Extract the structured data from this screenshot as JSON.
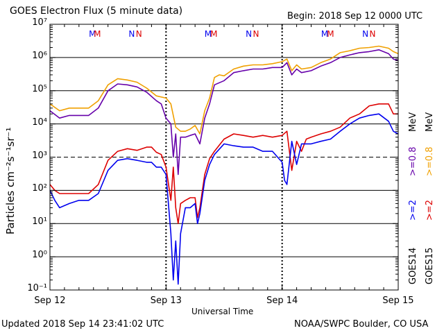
{
  "chart_data": {
    "type": "line",
    "title": "GOES Electron Flux (5 minute data)",
    "begin_label": "Begin: 2018 Sep 12 0000 UTC",
    "xlabel": "Universal Time",
    "ylabel": "Particles cm⁻²s⁻¹sr⁻¹",
    "x_ticks": [
      "Sep 12",
      "Sep 13",
      "Sep 14",
      "Sep 15"
    ],
    "x_range_hours": [
      0,
      72
    ],
    "y_scale": "log",
    "y_range": [
      0.1,
      10000000
    ],
    "y_ticks": [
      "10⁻¹",
      "10⁰",
      "10¹",
      "10²",
      "10³",
      "10⁴",
      "10⁵",
      "10⁶",
      "10⁷"
    ],
    "threshold_value": 1000,
    "footer_left": "Updated 2018 Sep 14 23:41:02 UTC",
    "footer_right": "NOAA/SWPC Boulder, CO USA",
    "satellites": {
      "GOES14": "GOES14",
      "GOES15": "GOES15"
    },
    "legend": {
      "goes14_ge2": ">=2",
      "goes14_ge08": ">=0.8",
      "goes15_ge2": ">=2",
      "goes15_ge08": ">=0.8",
      "unit": "MeV"
    },
    "markers": {
      "M": "M",
      "N": "N"
    },
    "day_markers": [
      {
        "m_blue_h": 8.8,
        "m_red_h": 9.8,
        "n_blue_h": 16.9,
        "n_red_h": 18.4
      },
      {
        "m_blue_h": 32.7,
        "m_red_h": 33.9,
        "n_blue_h": 41.1,
        "n_red_h": 42.6
      },
      {
        "m_blue_h": 56.8,
        "m_red_h": 58.0,
        "n_blue_h": 65.2,
        "n_red_h": 66.7
      }
    ],
    "colors": {
      "goes14_ge2": "#0000ee",
      "goes15_ge2": "#dd0000",
      "goes14_ge08": "#6600aa",
      "goes15_ge08": "#f0a000"
    },
    "series": [
      {
        "name": ">=0.8",
        "key": "goes15_ge08",
        "color": "#f0a000",
        "x": [
          0,
          2,
          4,
          6,
          8,
          10,
          12,
          14,
          16,
          18,
          20,
          22,
          24,
          25,
          26,
          27,
          28,
          29,
          30,
          31,
          32,
          33,
          34,
          35,
          36,
          38,
          40,
          42,
          44,
          46,
          48,
          49,
          50,
          51,
          52,
          54,
          56,
          58,
          60,
          62,
          64,
          66,
          68,
          70,
          71,
          72
        ],
        "y": [
          40000,
          25000,
          30000,
          30000,
          30000,
          50000,
          150000,
          230000,
          210000,
          180000,
          120000,
          70000,
          60000,
          40000,
          8000,
          6000,
          6000,
          7000,
          9000,
          5000,
          25000,
          60000,
          250000,
          300000,
          280000,
          450000,
          550000,
          600000,
          600000,
          650000,
          750000,
          900000,
          400000,
          600000,
          450000,
          500000,
          700000,
          900000,
          1400000,
          1600000,
          1900000,
          2000000,
          2200000,
          1900000,
          1500000,
          1300000
        ]
      },
      {
        "name": ">=0.8",
        "key": "goes14_ge08",
        "color": "#6600aa",
        "x": [
          0,
          2,
          4,
          6,
          8,
          10,
          12,
          14,
          16,
          18,
          20,
          22,
          23,
          24,
          25,
          25.5,
          26,
          26.5,
          27,
          28,
          29,
          30,
          31,
          32,
          33,
          34,
          36,
          38,
          40,
          42,
          44,
          46,
          48,
          49,
          50,
          51,
          52,
          54,
          56,
          58,
          60,
          62,
          64,
          66,
          68,
          70,
          71,
          72
        ],
        "y": [
          25000,
          15000,
          18000,
          18000,
          18000,
          30000,
          100000,
          160000,
          150000,
          130000,
          90000,
          50000,
          40000,
          15000,
          10000,
          1000,
          5000,
          300,
          4000,
          4000,
          4500,
          5000,
          2500,
          15000,
          40000,
          150000,
          200000,
          350000,
          400000,
          450000,
          450000,
          500000,
          500000,
          700000,
          300000,
          450000,
          350000,
          400000,
          550000,
          700000,
          1000000,
          1200000,
          1400000,
          1500000,
          1700000,
          1300000,
          900000,
          800000
        ]
      },
      {
        "name": ">=2",
        "key": "goes15_ge2",
        "color": "#dd0000",
        "x": [
          0,
          1,
          2,
          4,
          6,
          8,
          10,
          12,
          14,
          16,
          18,
          20,
          21,
          22,
          23,
          24,
          25,
          25.5,
          26,
          26.5,
          27,
          28,
          29,
          30,
          30.5,
          31,
          32,
          33,
          34,
          36,
          38,
          40,
          42,
          44,
          46,
          48,
          49,
          50,
          51,
          52,
          53,
          54,
          56,
          58,
          60,
          62,
          64,
          66,
          68,
          70,
          71,
          72
        ],
        "y": [
          150,
          100,
          80,
          80,
          80,
          80,
          150,
          800,
          1500,
          1800,
          1600,
          2000,
          2000,
          1400,
          1200,
          500,
          50,
          500,
          30,
          10,
          40,
          50,
          60,
          60,
          15,
          30,
          300,
          900,
          1500,
          3500,
          5000,
          4500,
          4000,
          4500,
          4000,
          4500,
          6000,
          400,
          3000,
          1500,
          3500,
          4000,
          5000,
          6000,
          8000,
          15000,
          20000,
          35000,
          40000,
          40000,
          20000,
          20000
        ]
      },
      {
        "name": ">=2",
        "key": "goes14_ge2",
        "color": "#0000ee",
        "x": [
          0,
          1,
          2,
          4,
          6,
          8,
          10,
          12,
          14,
          16,
          18,
          20,
          21,
          22,
          23,
          24,
          25,
          25.5,
          26,
          26.5,
          27,
          28,
          29,
          30,
          30.5,
          31,
          32,
          33,
          34,
          36,
          38,
          40,
          42,
          44,
          46,
          48,
          48.5,
          49,
          50,
          51,
          52,
          53,
          54,
          56,
          58,
          60,
          62,
          64,
          66,
          68,
          70,
          71,
          72
        ],
        "y": [
          100,
          50,
          30,
          40,
          50,
          50,
          80,
          400,
          800,
          900,
          800,
          700,
          700,
          500,
          500,
          300,
          5,
          0.2,
          3,
          0.15,
          5,
          30,
          30,
          40,
          10,
          20,
          200,
          600,
          1200,
          2500,
          2200,
          2000,
          2000,
          1500,
          1500,
          700,
          200,
          150,
          3000,
          600,
          2500,
          2500,
          2500,
          3000,
          3500,
          6000,
          10000,
          15000,
          18000,
          20000,
          12000,
          6000,
          5000
        ]
      }
    ]
  }
}
